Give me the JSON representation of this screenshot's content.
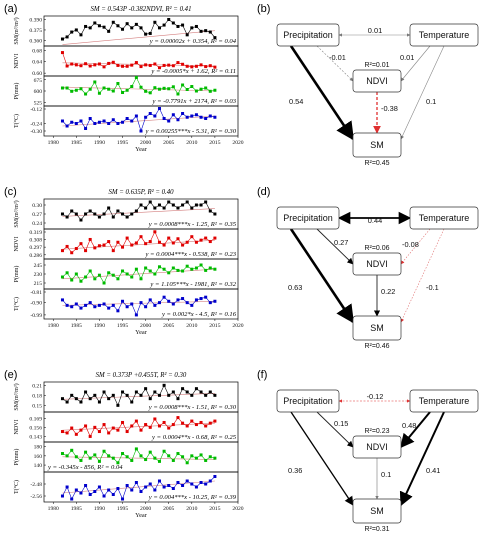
{
  "panels": [
    {
      "label": "(a)",
      "title": "SM = 0.543P -0.382NDVI, R² = 0.41",
      "xlabel": "Year",
      "xticks": [
        "1980",
        "1985",
        "1990",
        "1995",
        "2000",
        "2005",
        "2010",
        "2015",
        "2020"
      ],
      "subplots": [
        {
          "ylabel": "SM(m³/m³)",
          "color": "#000000",
          "yticks": [
            "0.390",
            "0.375",
            "0.360"
          ],
          "ymin": 0.352,
          "ymax": 0.395,
          "equation": "y = 0.00002x + 0.354, R² = 0.04",
          "trend": [
            0.354,
            0.374
          ],
          "values": [
            0.362,
            0.365,
            0.372,
            0.375,
            0.368,
            0.38,
            0.378,
            0.385,
            0.381,
            0.379,
            0.373,
            0.386,
            0.381,
            0.376,
            0.384,
            0.378,
            0.383,
            0.378,
            0.369,
            0.37,
            0.386,
            0.378,
            0.382,
            0.39,
            0.385,
            0.38,
            0.382,
            0.368,
            0.378,
            0.38,
            0.373,
            0.374,
            0.372,
            0.364
          ]
        },
        {
          "ylabel": "NDVI",
          "color": "#e00000",
          "yticks": [
            "0.68",
            "0.64",
            "0.60"
          ],
          "ymin": 0.59,
          "ymax": 0.695,
          "equation": "y = -0.0005*x + 1.62, R² = 0.11",
          "trend": [
            0.636,
            0.625
          ],
          "values": [
            0.672,
            0.625,
            0.632,
            0.629,
            0.626,
            0.633,
            0.625,
            0.629,
            0.632,
            0.622,
            0.634,
            0.638,
            0.627,
            0.624,
            0.624,
            0.628,
            0.637,
            0.623,
            0.629,
            0.627,
            0.632,
            0.619,
            0.627,
            0.628,
            0.626,
            0.637,
            0.631,
            0.624,
            0.622,
            0.624,
            0.629,
            0.623,
            0.626,
            0.621
          ]
        },
        {
          "ylabel": "P(mm)",
          "color": "#00bb00",
          "yticks": [
            "675",
            "600",
            "525"
          ],
          "ymin": 500,
          "ymax": 700,
          "equation": "y = -0.7791x + 2174, R² = 0.03",
          "trend": [
            626,
            600
          ],
          "values": [
            620,
            620,
            598,
            605,
            615,
            580,
            612,
            660,
            585,
            620,
            612,
            600,
            650,
            590,
            605,
            630,
            690,
            625,
            598,
            588,
            622,
            612,
            618,
            615,
            628,
            580,
            640,
            610,
            630,
            600,
            612,
            620,
            598,
            605
          ]
        },
        {
          "ylabel": "T(°C)",
          "color": "#0000cc",
          "yticks": [
            "-0.12",
            "-0.24",
            "-0.30"
          ],
          "ymin": -0.34,
          "ymax": -0.1,
          "equation": "y = 0.00255***x - 5.31, R² = 0.30",
          "trend": [
            -0.26,
            -0.18
          ],
          "values": [
            -0.22,
            -0.26,
            -0.23,
            -0.24,
            -0.22,
            -0.28,
            -0.2,
            -0.24,
            -0.23,
            -0.22,
            -0.24,
            -0.21,
            -0.24,
            -0.23,
            -0.2,
            -0.22,
            -0.18,
            -0.3,
            -0.19,
            -0.16,
            -0.18,
            -0.12,
            -0.2,
            -0.22,
            -0.17,
            -0.21,
            -0.16,
            -0.19,
            -0.18,
            -0.17,
            -0.19,
            -0.2,
            -0.18,
            -0.19
          ]
        }
      ]
    },
    {
      "label": "(c)",
      "title": "SM = 0.635P, R² = 0.40",
      "xlabel": "Year",
      "xticks": [
        "1980",
        "1985",
        "1990",
        "1995",
        "2000",
        "2005",
        "2010",
        "2015",
        "2020"
      ],
      "subplots": [
        {
          "ylabel": "SM(m³/m³)",
          "color": "#000000",
          "yticks": [
            "0.30",
            "0.27",
            "0.24"
          ],
          "ymin": 0.22,
          "ymax": 0.32,
          "equation": "y = 0.0008***x - 1.25, R² = 0.35",
          "trend": [
            0.262,
            0.288
          ],
          "values": [
            0.27,
            0.26,
            0.28,
            0.27,
            0.25,
            0.27,
            0.28,
            0.27,
            0.26,
            0.27,
            0.29,
            0.26,
            0.28,
            0.27,
            0.26,
            0.27,
            0.28,
            0.3,
            0.29,
            0.31,
            0.29,
            0.3,
            0.29,
            0.31,
            0.3,
            0.29,
            0.3,
            0.31,
            0.29,
            0.3,
            0.3,
            0.31,
            0.28,
            0.27
          ]
        },
        {
          "ylabel": "NDVI",
          "color": "#e00000",
          "yticks": [
            "0.319",
            "0.308",
            "0.297",
            "0.286"
          ],
          "ymin": 0.28,
          "ymax": 0.323,
          "equation": "y = 0.0004***x - 0.538, R² = 0.23",
          "trend": [
            0.294,
            0.307
          ],
          "values": [
            0.292,
            0.298,
            0.289,
            0.295,
            0.302,
            0.292,
            0.308,
            0.296,
            0.299,
            0.3,
            0.305,
            0.292,
            0.304,
            0.297,
            0.31,
            0.3,
            0.303,
            0.312,
            0.302,
            0.305,
            0.319,
            0.304,
            0.3,
            0.31,
            0.303,
            0.309,
            0.3,
            0.304,
            0.312,
            0.304,
            0.307,
            0.31,
            0.305,
            0.31
          ]
        },
        {
          "ylabel": "P(mm)",
          "color": "#00bb00",
          "yticks": [
            "245",
            "230",
            "215"
          ],
          "ymin": 205,
          "ymax": 255,
          "equation": "y = 1.105***x - 1981, R² = 0.32",
          "trend": [
            222,
            238
          ],
          "values": [
            225,
            232,
            220,
            230,
            218,
            225,
            235,
            222,
            228,
            215,
            232,
            228,
            222,
            235,
            230,
            225,
            238,
            222,
            240,
            235,
            230,
            242,
            238,
            232,
            240,
            236,
            235,
            243,
            238,
            240,
            245,
            236,
            240,
            238
          ]
        },
        {
          "ylabel": "T(°C)",
          "color": "#0000cc",
          "yticks": [
            "-0.81",
            "-0.90",
            "-0.99"
          ],
          "ymin": -1.02,
          "ymax": -0.8,
          "equation": "y = 0.002*x - 4.5, R² = 0.16",
          "trend": [
            -0.92,
            -0.89
          ],
          "values": [
            -0.88,
            -0.92,
            -0.93,
            -0.91,
            -0.94,
            -0.92,
            -0.9,
            -0.93,
            -0.92,
            -0.91,
            -0.94,
            -0.92,
            -0.96,
            -0.89,
            -0.93,
            -0.91,
            -0.99,
            -0.9,
            -0.93,
            -0.88,
            -0.92,
            -0.9,
            -0.86,
            -0.89,
            -0.91,
            -0.88,
            -0.87,
            -0.9,
            -0.92,
            -0.88,
            -0.87,
            -0.86,
            -0.9,
            -0.89
          ]
        }
      ]
    },
    {
      "label": "(e)",
      "title": "SM = 0.373P +0.455T, R² = 0.30",
      "xlabel": "Year",
      "xticks": [
        "1980",
        "1985",
        "1990",
        "1995",
        "2000",
        "2005",
        "2010",
        "2015",
        "2020"
      ],
      "subplots": [
        {
          "ylabel": "SM(m³/m³)",
          "color": "#000000",
          "yticks": [
            "0.21",
            "0.18",
            "0.15"
          ],
          "ymin": 0.13,
          "ymax": 0.22,
          "equation": "y = 0.0008***x - 1.51, R² = 0.30",
          "trend": [
            0.168,
            0.186
          ],
          "values": [
            0.17,
            0.16,
            0.18,
            0.17,
            0.16,
            0.19,
            0.17,
            0.18,
            0.16,
            0.19,
            0.17,
            0.18,
            0.15,
            0.19,
            0.18,
            0.16,
            0.19,
            0.18,
            0.2,
            0.17,
            0.19,
            0.18,
            0.21,
            0.18,
            0.19,
            0.17,
            0.2,
            0.19,
            0.18,
            0.2,
            0.19,
            0.18,
            0.19,
            0.18
          ]
        },
        {
          "ylabel": "NDVI",
          "color": "#e00000",
          "yticks": [
            "0.169",
            "0.156",
            "0.143"
          ],
          "ymin": 0.135,
          "ymax": 0.178,
          "equation": "y = 0.0004**x - 0.68, R² = 0.25",
          "trend": [
            0.152,
            0.162
          ],
          "values": [
            0.15,
            0.148,
            0.155,
            0.146,
            0.152,
            0.158,
            0.143,
            0.156,
            0.15,
            0.16,
            0.148,
            0.155,
            0.152,
            0.163,
            0.15,
            0.158,
            0.165,
            0.152,
            0.16,
            0.156,
            0.168,
            0.158,
            0.163,
            0.155,
            0.16,
            0.17,
            0.162,
            0.158,
            0.165,
            0.16,
            0.163,
            0.158,
            0.162,
            0.165
          ]
        },
        {
          "ylabel": "P(mm)",
          "color": "#00bb00",
          "yticks": [
            "180",
            "160",
            "140"
          ],
          "ymin": 125,
          "ymax": 190,
          "equation": "y = -0.345x - 856, R² = 0.04",
          "trend": [
            158,
            152
          ],
          "values": [
            165,
            160,
            172,
            158,
            150,
            168,
            155,
            162,
            148,
            170,
            160,
            155,
            145,
            165,
            158,
            150,
            175,
            160,
            152,
            168,
            155,
            148,
            170,
            160,
            150,
            165,
            158,
            145,
            160,
            155,
            162,
            150,
            158,
            155
          ]
        },
        {
          "ylabel": "T(°C)",
          "color": "#0000cc",
          "yticks": [
            "-2.48",
            "-2.56"
          ],
          "ymin": -2.6,
          "ymax": -2.4,
          "equation": "y = 0.004***x - 10.25, R² = 0.39",
          "trend": [
            -2.54,
            -2.46
          ],
          "values": [
            -2.56,
            -2.5,
            -2.58,
            -2.52,
            -2.54,
            -2.49,
            -2.55,
            -2.53,
            -2.5,
            -2.56,
            -2.52,
            -2.55,
            -2.51,
            -2.58,
            -2.49,
            -2.52,
            -2.47,
            -2.53,
            -2.5,
            -2.48,
            -2.52,
            -2.46,
            -2.5,
            -2.49,
            -2.51,
            -2.47,
            -2.49,
            -2.46,
            -2.48,
            -2.5,
            -2.47,
            -2.48,
            -2.46,
            -2.43
          ]
        }
      ]
    }
  ],
  "diagrams": [
    {
      "label": "(b)",
      "nodes": {
        "precip": "Precipitation",
        "temp": "Temperature",
        "ndvi": "NDVI",
        "sm": "SM"
      },
      "ndvi_r2": "R²=0.01",
      "sm_r2": "R²=0.45",
      "coef": {
        "p_t": "0.01",
        "p_ndvi": "-0.01",
        "t_ndvi": "0.01",
        "p_sm": "0.54",
        "ndvi_sm": "-0.38",
        "t_sm": "0.1"
      }
    },
    {
      "label": "(d)",
      "nodes": {
        "precip": "Precipitation",
        "temp": "Temperature",
        "ndvi": "NDVI",
        "sm": "SM"
      },
      "ndvi_r2": "R²=0.06",
      "sm_r2": "R²=0.46",
      "coef": {
        "p_t": "0.44",
        "p_ndvi": "0.27",
        "t_ndvi": "-0.08",
        "p_sm": "0.63",
        "ndvi_sm": "0.22",
        "t_sm": "-0.1"
      }
    },
    {
      "label": "(f)",
      "nodes": {
        "precip": "Precipitation",
        "temp": "Temperature",
        "ndvi": "NDVI",
        "sm": "SM"
      },
      "ndvi_r2": "R²=0.23",
      "sm_r2": "R²=0.31",
      "coef": {
        "p_t": "-0.12",
        "p_ndvi": "0.15",
        "t_ndvi": "0.48",
        "p_sm": "0.36",
        "ndvi_sm": "0.1",
        "t_sm": "0.41"
      }
    }
  ]
}
